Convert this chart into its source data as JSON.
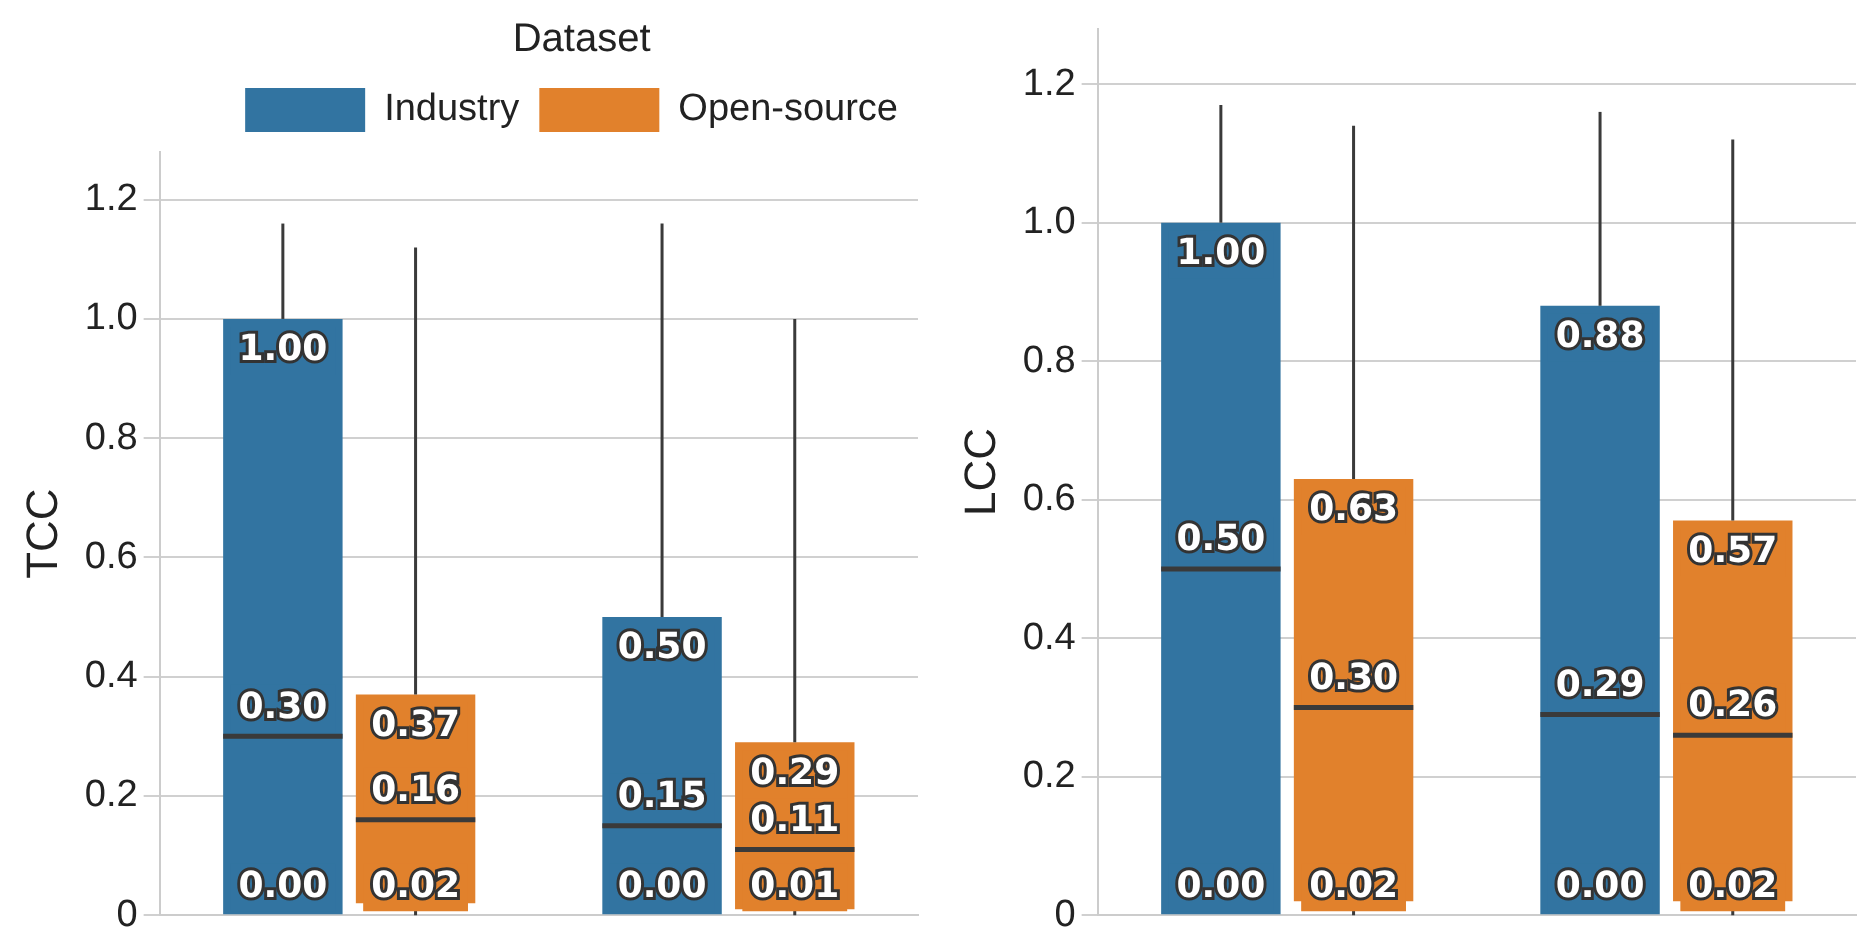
{
  "chart_data": [
    {
      "type": "box",
      "ylabel": "TCC",
      "categories": [
        null,
        null
      ],
      "ylim": [
        0,
        1.28
      ],
      "yticks": [
        0,
        {
          "value": 0.2,
          "label": "0.2"
        },
        {
          "value": 0.4,
          "label": "0.4"
        },
        {
          "value": 0.6,
          "label": "0.6"
        },
        {
          "value": 0.8,
          "label": "0.8"
        },
        {
          "value": 1.0,
          "label": "1.0"
        },
        {
          "value": 1.2,
          "label": "1.2"
        }
      ],
      "grid": "y",
      "tick_labels": "y",
      "legend": "top right",
      "legend_title": "Dataset",
      "series": [
        {
          "name": "Industry",
          "color": "#3274a1",
          "boxes": [
            {
              "low": 0,
              "q1": 0.0,
              "median": 0.3,
              "q3": 1.0,
              "high": 1.16
            },
            {
              "low": 0,
              "q1": 0.0,
              "median": 0.15,
              "q3": 0.5,
              "high": 1.16
            }
          ]
        },
        {
          "name": "Open-source",
          "color": "#e1812c",
          "boxes": [
            {
              "low": 0,
              "q1": 0.02,
              "median": 0.16,
              "q3": 0.37,
              "high": 1.12
            },
            {
              "low": 0,
              "q1": 0.01,
              "median": 0.11,
              "q3": 0.29,
              "high": 1.0
            }
          ]
        }
      ],
      "annotations": [
        {
          "text": "0.00",
          "y": 0.0
        },
        {
          "text": "0.30",
          "y": 0.3
        },
        {
          "text": "1.00",
          "y": 1.0
        },
        {
          "text": "0.00",
          "y": 0.0
        },
        {
          "text": "0.15",
          "y": 0.15
        },
        {
          "text": "0.50",
          "y": 0.5
        },
        {
          "text": "0.02",
          "y": 0.02
        },
        {
          "text": "0.16",
          "y": 0.16
        },
        {
          "text": "0.37",
          "y": 0.37
        },
        {
          "text": "0.01",
          "y": 0.01
        },
        {
          "text": "0.11",
          "y": 0.11
        },
        {
          "text": "0.29",
          "y": 0.29
        }
      ]
    },
    {
      "type": "box",
      "ylabel": "LCC",
      "categories": [
        null,
        null
      ],
      "ylim": [
        0,
        1.28
      ],
      "yticks": [
        0,
        {
          "value": 0.2,
          "label": "0.2"
        },
        {
          "value": 0.4,
          "label": "0.4"
        },
        {
          "value": 0.6,
          "label": "0.6"
        },
        {
          "value": 0.8,
          "label": "0.8"
        },
        {
          "value": 1.0,
          "label": "1.0"
        },
        {
          "value": 1.2,
          "label": "1.2"
        }
      ],
      "grid": "y",
      "tick_labels": "y",
      "series": [
        {
          "color": "#3274a1",
          "boxes": [
            {
              "low": 0,
              "q1": 0.0,
              "median": 0.5,
              "q3": 1.0,
              "high": 1.17
            },
            {
              "low": 0,
              "q1": 0.0,
              "median": 0.29,
              "q3": 0.88,
              "high": 1.16
            }
          ]
        },
        {
          "color": "#e1812c",
          "boxes": [
            {
              "low": 0,
              "q1": 0.02,
              "median": 0.3,
              "q3": 0.63,
              "high": 1.14
            },
            {
              "low": 0,
              "q1": 0.02,
              "median": 0.26,
              "q3": 0.57,
              "high": 1.12
            }
          ]
        }
      ],
      "annotations": [
        {
          "text": "0.00",
          "y": 0.0
        },
        {
          "text": "0.50",
          "y": 0.5
        },
        {
          "text": "1.00",
          "y": 1.0
        },
        {
          "text": "0.00",
          "y": 0.0
        },
        {
          "text": "0.29",
          "y": 0.29
        },
        {
          "text": "0.88",
          "y": 0.88
        },
        {
          "text": "0.02",
          "y": 0.02
        },
        {
          "text": "0.30",
          "y": 0.3
        },
        {
          "text": "0.63",
          "y": 0.63
        },
        {
          "text": "0.02",
          "y": 0.02
        },
        {
          "text": "0.26",
          "y": 0.26
        },
        {
          "text": "0.57",
          "y": 0.57
        }
      ]
    }
  ]
}
